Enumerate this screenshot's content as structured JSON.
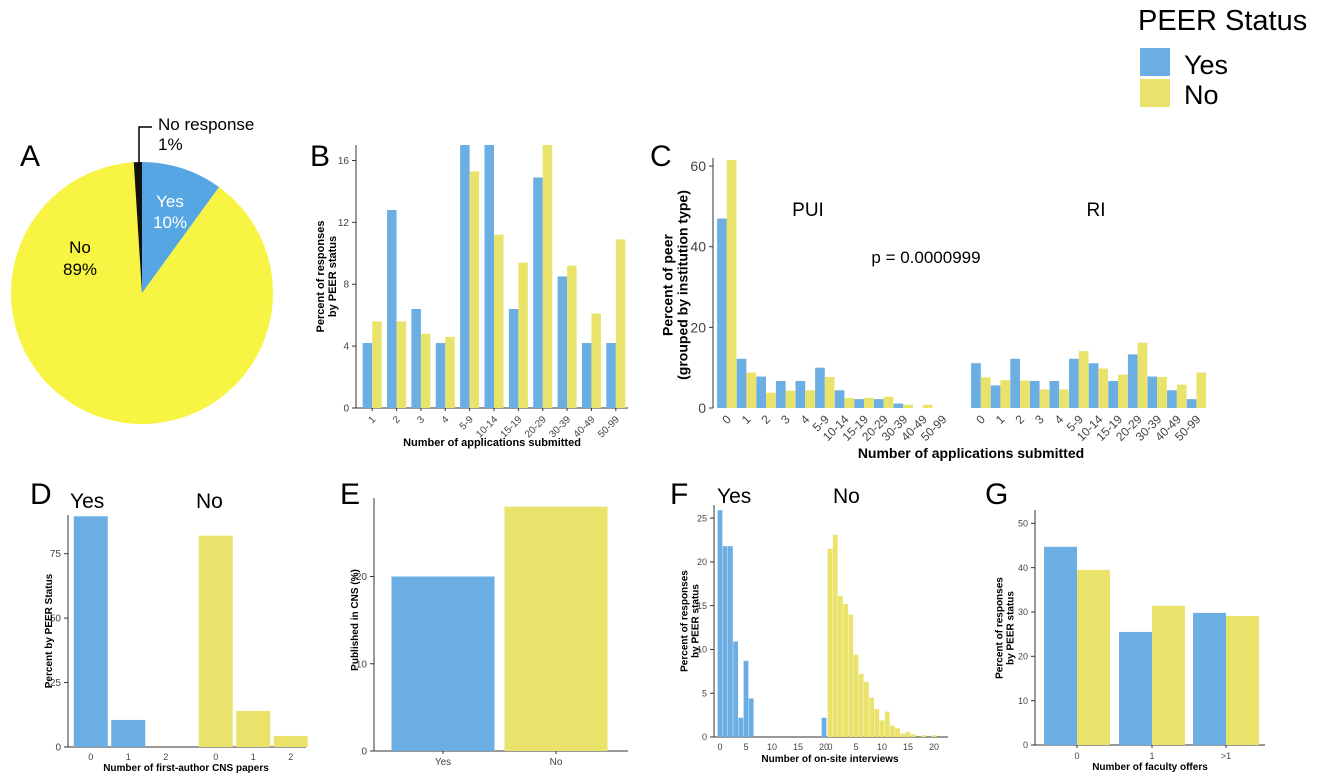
{
  "legend": {
    "title": "PEER Status",
    "entries": [
      {
        "label": "Yes",
        "color": "#6aaee3"
      },
      {
        "label": "No",
        "color": "#eae36b"
      }
    ]
  },
  "colors": {
    "yes": "#6aaee3",
    "no": "#eae36b",
    "pie_yes": "#55a6e2",
    "pie_no": "#f7f443",
    "pie_noresp": "#111111",
    "axis": "#333333"
  },
  "chart_data": [
    {
      "panel": "A",
      "type": "pie",
      "slices": [
        {
          "label": "Yes",
          "value": 10,
          "pct_label": "10%"
        },
        {
          "label": "No",
          "value": 89,
          "pct_label": "89%"
        },
        {
          "label": "No response",
          "value": 1,
          "pct_label": "1%"
        }
      ]
    },
    {
      "panel": "B",
      "type": "bar",
      "xlabel": "Number of applications submitted",
      "ylabel": [
        "Percent of responses",
        "by PEER status"
      ],
      "ylim": [
        0,
        17
      ],
      "yticks": [
        0,
        4,
        8,
        12,
        16
      ],
      "categories": [
        "1",
        "2",
        "3",
        "4",
        "5-9",
        "10-14",
        "15-19",
        "20-29",
        "30-39",
        "40-49",
        "50-99"
      ],
      "series": [
        {
          "name": "Yes",
          "values": [
            4.2,
            12.8,
            6.4,
            4.2,
            17.0,
            17.0,
            6.4,
            14.9,
            8.5,
            4.2,
            4.2
          ]
        },
        {
          "name": "No",
          "values": [
            5.6,
            5.6,
            4.8,
            4.6,
            15.3,
            11.2,
            9.4,
            17.0,
            9.2,
            6.1,
            10.9
          ]
        }
      ]
    },
    {
      "panel": "C",
      "type": "bar",
      "xlabel": "Number of applications submitted",
      "ylabel": [
        "Percent of peer",
        "(grouped by institution type)"
      ],
      "ylim": [
        0,
        62
      ],
      "yticks": [
        0,
        20,
        40,
        60
      ],
      "annotation": "p = 0.0000999",
      "categories": [
        "0",
        "1",
        "2",
        "3",
        "4",
        "5-9",
        "10-14",
        "15-19",
        "20-29",
        "30-39",
        "40-49",
        "50-99"
      ],
      "groups": [
        {
          "name": "PUI",
          "series": [
            {
              "name": "Yes",
              "values": [
                47,
                12.2,
                7.8,
                6.7,
                6.7,
                10,
                4.4,
                2.2,
                2.2,
                1.1,
                0,
                0
              ]
            },
            {
              "name": "No",
              "values": [
                61.5,
                8.8,
                3.8,
                4.3,
                4.4,
                7.7,
                2.5,
                2.5,
                2.8,
                0.8,
                0.8,
                0
              ]
            }
          ]
        },
        {
          "name": "RI",
          "series": [
            {
              "name": "Yes",
              "values": [
                11.1,
                5.6,
                12.2,
                6.7,
                6.7,
                12.2,
                11.1,
                6.7,
                13.3,
                7.8,
                4.4,
                2.2
              ]
            },
            {
              "name": "No",
              "values": [
                7.6,
                6.9,
                6.8,
                4.6,
                4.6,
                14.1,
                9.8,
                8.3,
                16.2,
                7.7,
                5.8,
                8.8
              ]
            }
          ]
        }
      ]
    },
    {
      "panel": "D",
      "type": "bar",
      "xlabel": "Number of first-author CNS papers",
      "ylabel": "Percent by PEER Status",
      "ylim": [
        0,
        90
      ],
      "yticks": [
        0,
        25,
        50,
        75
      ],
      "groups": [
        {
          "name": "Yes",
          "categories": [
            "0",
            "1",
            "2"
          ],
          "values": [
            89.5,
            10.5,
            0
          ]
        },
        {
          "name": "No",
          "categories": [
            "0",
            "1",
            "2"
          ],
          "values": [
            82,
            14,
            4.3
          ]
        }
      ]
    },
    {
      "panel": "E",
      "type": "bar",
      "xlabel": "",
      "ylabel": "Published in CNS (%)",
      "ylim": [
        0,
        29
      ],
      "yticks": [
        0,
        10,
        20
      ],
      "categories": [
        "Yes",
        "No"
      ],
      "values": [
        20,
        28
      ]
    },
    {
      "panel": "F",
      "type": "bar",
      "xlabel": "Number of on-site interviews",
      "ylabel": [
        "Percent of responses",
        "by PEER status"
      ],
      "ylim": [
        0,
        26.5
      ],
      "yticks": [
        0,
        5,
        10,
        15,
        20,
        25
      ],
      "xticks": [
        0,
        5,
        10,
        15,
        20
      ],
      "groups": [
        {
          "name": "Yes",
          "x": [
            0,
            1,
            2,
            3,
            4,
            5,
            6,
            20
          ],
          "values": [
            25.9,
            21.8,
            21.8,
            10.9,
            2.2,
            8.7,
            4.4,
            2.2
          ]
        },
        {
          "name": "No",
          "x": [
            0,
            1,
            2,
            3,
            4,
            5,
            6,
            7,
            8,
            9,
            10,
            11,
            12,
            13,
            14,
            15,
            16,
            18,
            20
          ],
          "values": [
            21.5,
            23.1,
            16.1,
            15.2,
            14,
            9.4,
            7.2,
            6.3,
            4.5,
            3.2,
            1.9,
            2.9,
            1.3,
            1,
            0.4,
            0.6,
            0.3,
            0.2,
            0.2
          ]
        }
      ]
    },
    {
      "panel": "G",
      "type": "bar",
      "xlabel": "Number of faculty offers",
      "ylabel": [
        "Percent of responses",
        "by PEER status"
      ],
      "ylim": [
        0,
        53
      ],
      "yticks": [
        0,
        10,
        20,
        30,
        40,
        50
      ],
      "categories": [
        "0",
        "1",
        ">1"
      ],
      "series": [
        {
          "name": "Yes",
          "values": [
            44.7,
            25.5,
            29.8
          ]
        },
        {
          "name": "No",
          "values": [
            39.5,
            31.4,
            29.1
          ]
        }
      ]
    }
  ]
}
